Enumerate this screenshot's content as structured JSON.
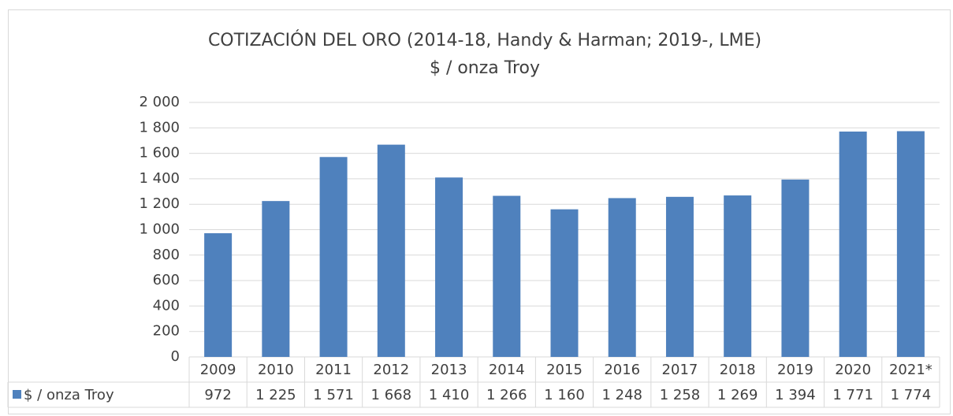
{
  "chart_data": {
    "type": "bar",
    "title": "COTIZACIÓN DEL ORO (2014-18, Handy & Harman; 2019-, LME)",
    "subtitle": "$ / onza Troy",
    "categories": [
      "2009",
      "2010",
      "2011",
      "2012",
      "2013",
      "2014",
      "2015",
      "2016",
      "2017",
      "2018",
      "2019",
      "2020",
      "2021*"
    ],
    "series": [
      {
        "name": "$ / onza Troy",
        "color": "#4f81bd",
        "values": [
          972,
          1225,
          1571,
          1668,
          1410,
          1266,
          1160,
          1248,
          1258,
          1269,
          1394,
          1771,
          1774
        ],
        "value_labels": [
          "972",
          "1 225",
          "1 571",
          "1 668",
          "1 410",
          "1 266",
          "1 160",
          "1 248",
          "1 258",
          "1 269",
          "1 394",
          "1 771",
          "1 774"
        ]
      }
    ],
    "ylim": [
      0,
      2000
    ],
    "yticks": [
      0,
      200,
      400,
      600,
      800,
      {
        "value": 1000,
        "label": "1 000"
      },
      {
        "value": 1200,
        "label": "1 200"
      },
      {
        "value": 1400,
        "label": "1 400"
      },
      {
        "value": 1600,
        "label": "1 600"
      },
      {
        "value": 1800,
        "label": "1 800"
      },
      {
        "value": 2000,
        "label": "2 000"
      }
    ],
    "grid": true,
    "legend": "data-table"
  }
}
